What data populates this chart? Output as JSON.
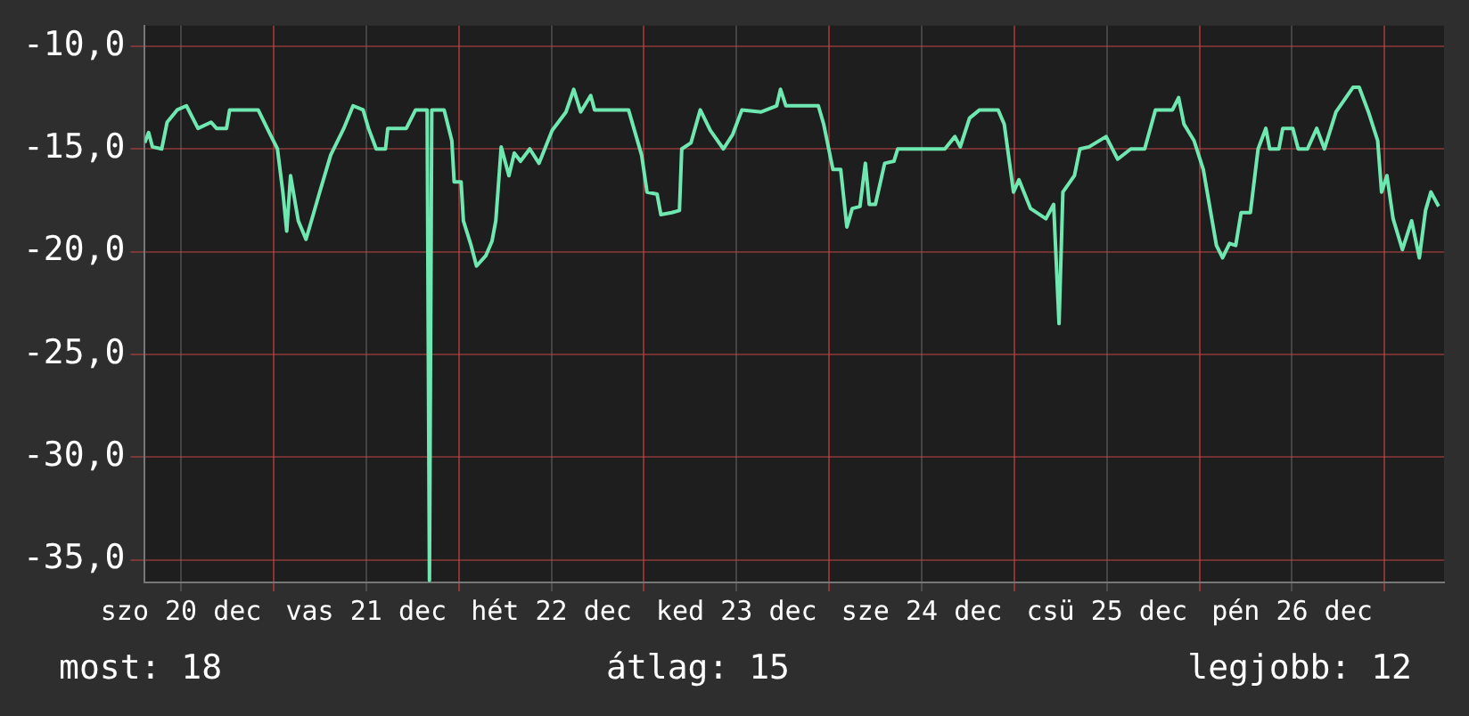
{
  "chart_data": {
    "type": "line",
    "legend": false,
    "grid": true,
    "marker": "none",
    "line_style": "solid",
    "xlim": [
      "--12-20T07:18",
      "--12-27T07:42"
    ],
    "ylim": [
      -36.1,
      -9.0
    ],
    "yticks": [
      {
        "value": -10,
        "label": "-10,0"
      },
      {
        "value": -15,
        "label": "-15,0"
      },
      {
        "value": -20,
        "label": "-20,0"
      },
      {
        "value": -25,
        "label": "-25,0"
      },
      {
        "value": -30,
        "label": "-30,0"
      },
      {
        "value": -35,
        "label": "-35,0"
      }
    ],
    "xticks": [
      {
        "value": "--12-20T12:00",
        "label": "szo 20 dec"
      },
      {
        "value": "--12-21",
        "label": null
      },
      {
        "value": "--12-21T12:00",
        "label": "vas 21 dec"
      },
      {
        "value": "--12-22",
        "label": null
      },
      {
        "value": "--12-22T12:00",
        "label": "hét 22 dec"
      },
      {
        "value": "--12-23",
        "label": null
      },
      {
        "value": "--12-23T12:00",
        "label": "ked 23 dec"
      },
      {
        "value": "--12-24",
        "label": null
      },
      {
        "value": "--12-24T12:00",
        "label": "sze 24 dec"
      },
      {
        "value": "--12-25",
        "label": null
      },
      {
        "value": "--12-25T12:00",
        "label": "csü 25 dec"
      },
      {
        "value": "--12-26",
        "label": null
      },
      {
        "value": "--12-26T12:00",
        "label": "pén 26 dec"
      },
      {
        "value": "--12-27",
        "label": null
      }
    ],
    "annotations": [
      "most: 18",
      "átlag: 15",
      "legjobb: 12"
    ],
    "series": [
      {
        "color": "#6ee8b0",
        "x": [
          "--12-20T07:18",
          "--12-20T07:48",
          "--12-20T08:18",
          "--12-20T09:30",
          "--12-20T10:12",
          "--12-20T11:30",
          "--12-20T12:42",
          "--12-20T14:12",
          "--12-20T15:54",
          "--12-20T16:36",
          "--12-20T17:54",
          "--12-20T18:18",
          "--12-20T22:00",
          "--12-20T23:18",
          "--12-21T00:30",
          "--12-21T01:12",
          "--12-21T01:42",
          "--12-21T02:12",
          "--12-21T03:12",
          "--12-21T04:12",
          "--12-21T04:54",
          "--12-21T05:54",
          "--12-21T07:24",
          "--12-21T09:06",
          "--12-21T10:18",
          "--12-21T11:36",
          "--12-21T12:18",
          "--12-21T13:18",
          "--12-21T14:30",
          "--12-21T14:48",
          "--12-21T17:12",
          "--12-21T18:24",
          "--12-21T19:54",
          "--12-21T20:12",
          "--12-21T20:30",
          "--12-21T22:06",
          "--12-21T23:06",
          "--12-21T23:24",
          "--12-22T00:18",
          "--12-22T00:36",
          "--12-22T01:36",
          "--12-22T02:18",
          "--12-22T03:30",
          "--12-22T04:18",
          "--12-22T04:48",
          "--12-22T05:30",
          "--12-22T06:30",
          "--12-22T07:12",
          "--12-22T08:00",
          "--12-22T09:12",
          "--12-22T10:24",
          "--12-22T12:06",
          "--12-22T13:54",
          "--12-22T14:54",
          "--12-22T15:48",
          "--12-22T17:06",
          "--12-22T17:36",
          "--12-22T22:00",
          "--12-22T23:42",
          "--12-23T00:24",
          "--12-23T01:42",
          "--12-23T02:12",
          "--12-23T03:36",
          "--12-23T04:36",
          "--12-23T04:54",
          "--12-23T06:06",
          "--12-23T07:18",
          "--12-23T08:36",
          "--12-23T10:18",
          "--12-23T11:30",
          "--12-23T12:42",
          "--12-23T15:12",
          "--12-23T17:12",
          "--12-23T17:42",
          "--12-23T18:24",
          "--12-23T22:36",
          "--12-23T23:18",
          "--12-24T00:30",
          "--12-24T01:30",
          "--12-24T02:18",
          "--12-24T03:00",
          "--12-24T04:00",
          "--12-24T04:42",
          "--12-24T05:12",
          "--12-24T06:00",
          "--12-24T07:12",
          "--12-24T08:24",
          "--12-24T08:54",
          "--12-24T15:00",
          "--12-24T16:18",
          "--12-24T17:00",
          "--12-24T18:12",
          "--12-24T19:30",
          "--12-24T21:54",
          "--12-24T22:42",
          "--12-24T23:54",
          "--12-25T00:36",
          "--12-25T02:06",
          "--12-25T04:06",
          "--12-25T05:06",
          "--12-25T05:48",
          "--12-25T06:18",
          "--12-25T07:48",
          "--12-25T08:30",
          "--12-25T09:42",
          "--12-25T11:54",
          "--12-25T13:24",
          "--12-25T15:06",
          "--12-25T16:54",
          "--12-25T18:18",
          "--12-25T20:30",
          "--12-25T21:18",
          "--12-25T22:00",
          "--12-25T23:18",
          "--12-26T00:30",
          "--12-26T02:12",
          "--12-26T03:00",
          "--12-26T03:54",
          "--12-26T04:42",
          "--12-26T05:24",
          "--12-26T06:36",
          "--12-26T07:36",
          "--12-26T08:36",
          "--12-26T09:06",
          "--12-26T10:18",
          "--12-26T10:48",
          "--12-26T12:06",
          "--12-26T12:48",
          "--12-26T14:00",
          "--12-26T15:12",
          "--12-26T16:12",
          "--12-26T17:42",
          "--12-26T19:54",
          "--12-26T20:42",
          "--12-26T21:54",
          "--12-26T23:06",
          "--12-26T23:36",
          "--12-27T00:18",
          "--12-27T01:06",
          "--12-27T02:18",
          "--12-27T03:30",
          "--12-27T04:30",
          "--12-27T05:18",
          "--12-27T06:00",
          "--12-27T07:00"
        ],
        "values": [
          -14.7,
          -14.2,
          -14.9,
          -15.0,
          -13.7,
          -13.1,
          -12.9,
          -14.0,
          -13.7,
          -14.0,
          -14.0,
          -13.1,
          -13.1,
          -14.1,
          -15.0,
          -17.1,
          -19.0,
          -16.3,
          -18.5,
          -19.4,
          -18.5,
          -17.2,
          -15.3,
          -14.0,
          -12.9,
          -13.1,
          -14.0,
          -15.0,
          -15.0,
          -14.0,
          -14.0,
          -13.1,
          -13.1,
          -36.0,
          -13.1,
          -13.1,
          -14.6,
          -16.6,
          -16.6,
          -18.5,
          -19.7,
          -20.7,
          -20.2,
          -19.5,
          -18.5,
          -14.9,
          -16.3,
          -15.2,
          -15.6,
          -15.0,
          -15.7,
          -14.1,
          -13.2,
          -12.1,
          -13.2,
          -12.4,
          -13.1,
          -13.1,
          -15.3,
          -17.1,
          -17.2,
          -18.2,
          -18.1,
          -18.0,
          -15.0,
          -14.7,
          -13.1,
          -14.1,
          -15.0,
          -14.3,
          -13.1,
          -13.2,
          -12.9,
          -12.1,
          -12.9,
          -12.9,
          -13.8,
          -16.0,
          -16.0,
          -18.8,
          -17.9,
          -17.8,
          -15.7,
          -17.7,
          -17.7,
          -15.7,
          -15.6,
          -15.0,
          -15.0,
          -14.4,
          -14.9,
          -13.5,
          -13.1,
          -13.1,
          -13.8,
          -17.1,
          -16.5,
          -17.9,
          -18.4,
          -17.7,
          -23.5,
          -17.1,
          -16.3,
          -15.0,
          -14.9,
          -14.4,
          -15.5,
          -15.0,
          -15.0,
          -13.1,
          -13.1,
          -12.5,
          -13.8,
          -14.6,
          -16.0,
          -19.7,
          -20.3,
          -19.6,
          -19.7,
          -18.1,
          -18.1,
          -15.0,
          -14.0,
          -15.0,
          -15.0,
          -14.0,
          -14.0,
          -15.0,
          -15.0,
          -14.0,
          -15.0,
          -13.2,
          -12.0,
          -12.0,
          -13.2,
          -14.6,
          -17.1,
          -16.3,
          -18.4,
          -19.9,
          -18.5,
          -20.3,
          -18.0,
          -17.1,
          -17.8
        ]
      }
    ]
  }
}
